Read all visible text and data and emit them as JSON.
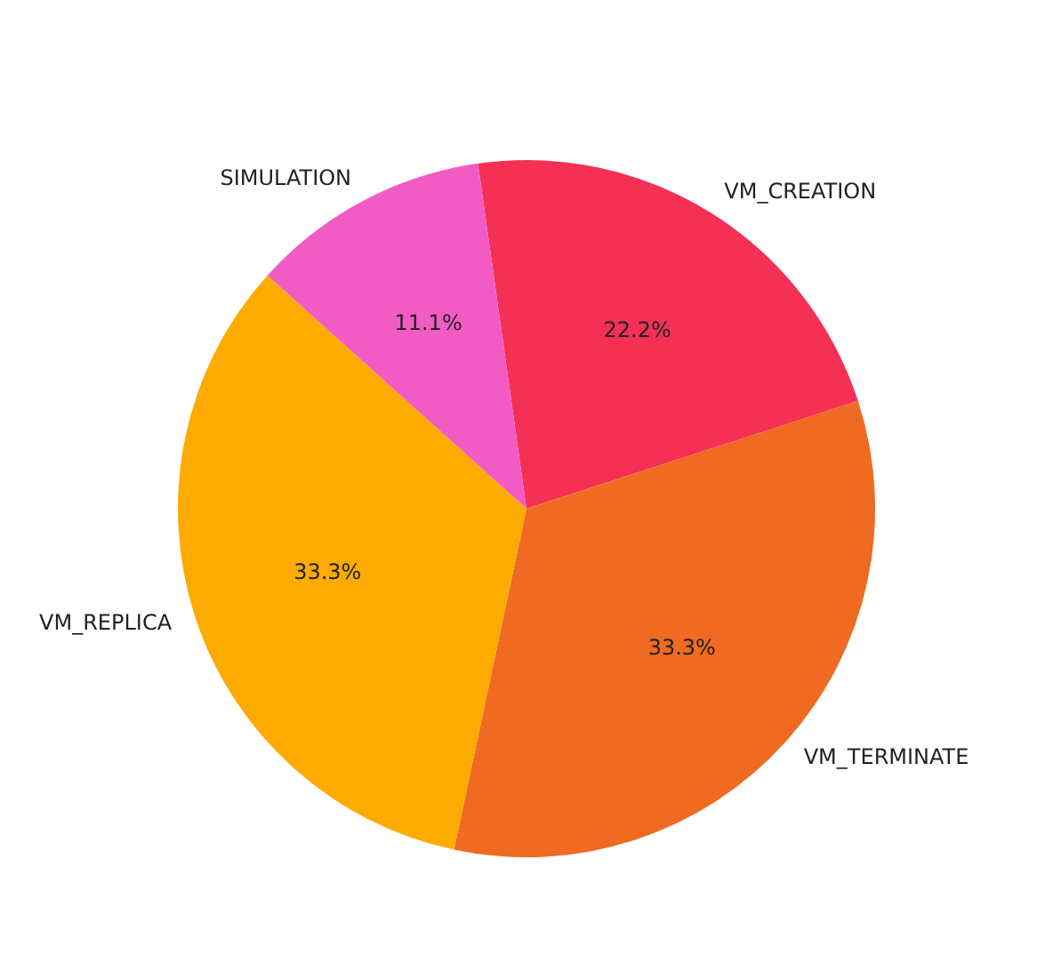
{
  "chart_data": {
    "type": "pie",
    "categories": [
      "VM_CREATION",
      "VM_TERMINATE",
      "VM_REPLICA",
      "SIMULATION"
    ],
    "values": [
      22.2,
      33.3,
      33.3,
      11.1
    ],
    "colors": [
      "#f43055",
      "#f06a22",
      "#fdab00",
      "#f25bc4"
    ],
    "value_labels": [
      "22.2%",
      "33.3%",
      "33.3%",
      "11.1%"
    ],
    "legend": false
  }
}
